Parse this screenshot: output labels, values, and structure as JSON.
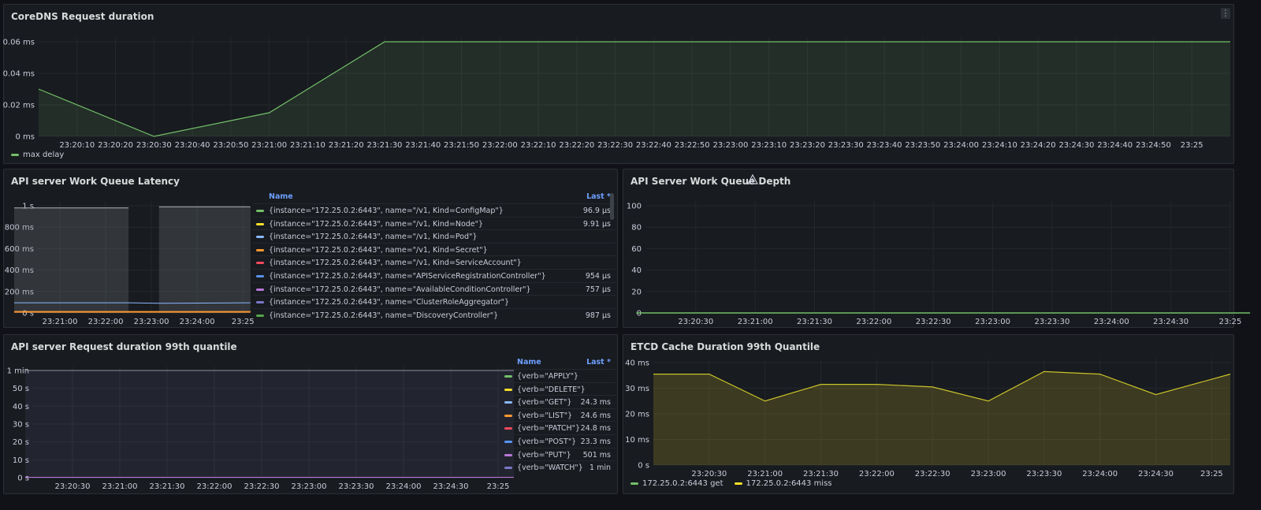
{
  "colors": {
    "green": "#73bf69",
    "yellow": "#fade2a",
    "blue": "#8ab8ff",
    "orange": "#ff9830",
    "red": "#f2495c",
    "lightblue": "#5794f2",
    "purple": "#b877d9",
    "gray_purple": "#7c78c9"
  },
  "panels": {
    "coredns": {
      "title": "CoreDNS Request duration",
      "legend": [
        {
          "name": "max delay",
          "color": "#73bf69"
        }
      ],
      "chart_data": {
        "type": "area",
        "title": "CoreDNS Request duration",
        "x": [
          "23:20:10",
          "23:20:20",
          "23:20:30",
          "23:20:40",
          "23:20:50",
          "23:21:00",
          "23:21:10",
          "23:21:20",
          "23:21:30",
          "23:21:40",
          "23:21:50",
          "23:22:00",
          "23:22:10",
          "23:22:20",
          "23:22:30",
          "23:22:40",
          "23:22:50",
          "23:23:00",
          "23:23:10",
          "23:23:20",
          "23:23:30",
          "23:23:40",
          "23:23:50",
          "23:24:00",
          "23:24:10",
          "23:24:20",
          "23:24:30",
          "23:24:40",
          "23:24:50",
          "23:25"
        ],
        "series": [
          {
            "name": "max delay",
            "points": [
              {
                "t": "23:20:00",
                "v": 0.03
              },
              {
                "t": "23:20:30",
                "v": 0.0
              },
              {
                "t": "23:21:00",
                "v": 0.015
              },
              {
                "t": "23:21:30",
                "v": 0.06
              },
              {
                "t": "23:25:10",
                "v": 0.06
              }
            ]
          }
        ],
        "yticks": [
          "0 ms",
          "0.02 ms",
          "0.04 ms",
          "0.06 ms"
        ],
        "ylim": [
          0,
          0.06
        ],
        "grid": true,
        "legend_position": "bottom-left"
      }
    },
    "wq_latency": {
      "title": "API server Work Queue Latency",
      "legend_header": {
        "name": "Name",
        "last": "Last *"
      },
      "legend_rows": [
        {
          "name": "{instance=\"172.25.0.2:6443\", name=\"/v1, Kind=ConfigMap\"}",
          "last": "96.9 µs",
          "color": "#73bf69"
        },
        {
          "name": "{instance=\"172.25.0.2:6443\", name=\"/v1, Kind=Node\"}",
          "last": "9.91 µs",
          "color": "#fade2a"
        },
        {
          "name": "{instance=\"172.25.0.2:6443\", name=\"/v1, Kind=Pod\"}",
          "last": "",
          "color": "#8ab8ff"
        },
        {
          "name": "{instance=\"172.25.0.2:6443\", name=\"/v1, Kind=Secret\"}",
          "last": "",
          "color": "#ff9830"
        },
        {
          "name": "{instance=\"172.25.0.2:6443\", name=\"/v1, Kind=ServiceAccount\"}",
          "last": "",
          "color": "#f2495c"
        },
        {
          "name": "{instance=\"172.25.0.2:6443\", name=\"APIServiceRegistrationController\"}",
          "last": "954 µs",
          "color": "#5794f2"
        },
        {
          "name": "{instance=\"172.25.0.2:6443\", name=\"AvailableConditionController\"}",
          "last": "757 µs",
          "color": "#b877d9"
        },
        {
          "name": "{instance=\"172.25.0.2:6443\", name=\"ClusterRoleAggregator\"}",
          "last": "",
          "color": "#7c78c9"
        },
        {
          "name": "{instance=\"172.25.0.2:6443\", name=\"DiscoveryController\"}",
          "last": "987 µs",
          "color": "#56a64b"
        }
      ],
      "chart_data": {
        "type": "area",
        "title": "API server Work Queue Latency",
        "x": [
          "23:21:00",
          "23:22:00",
          "23:23:00",
          "23:24:00",
          "23:25"
        ],
        "yticks": [
          "0 s",
          "200 ms",
          "400 ms",
          "600 ms",
          "800 ms",
          "1 s"
        ],
        "ylim": [
          0,
          1
        ],
        "series": [
          {
            "name": "gray band",
            "segments": [
              {
                "from": "23:20:00",
                "to": "23:22:30",
                "v": 0.98
              },
              {
                "from": "23:23:10",
                "to": "23:25:10",
                "v": 0.99
              }
            ]
          },
          {
            "name": "blue line",
            "points": [
              {
                "t": "23:20:00",
                "v": 0.095
              },
              {
                "t": "23:22:30",
                "v": 0.095
              },
              {
                "t": "23:23:10",
                "v": 0.09
              },
              {
                "t": "23:25:10",
                "v": 0.095
              }
            ]
          },
          {
            "name": "orange base",
            "points": [
              {
                "t": "23:20:00",
                "v": 0.01
              },
              {
                "t": "23:25:10",
                "v": 0.01
              }
            ]
          }
        ],
        "grid": true
      }
    },
    "wq_depth": {
      "title": "API Server Work Queue Depth",
      "chart_data": {
        "type": "line",
        "title": "API Server Work Queue Depth",
        "x": [
          "23:20:30",
          "23:21:00",
          "23:21:30",
          "23:22:00",
          "23:22:30",
          "23:23:00",
          "23:23:30",
          "23:24:00",
          "23:24:30",
          "23:25"
        ],
        "yticks": [
          "0",
          "20",
          "40",
          "60",
          "80",
          "100"
        ],
        "ylim": [
          0,
          100
        ],
        "series": [
          {
            "name": "depth",
            "points": [
              {
                "t": "23:20:00",
                "v": 0
              },
              {
                "t": "23:25:10",
                "v": 0
              }
            ]
          }
        ],
        "grid": true
      }
    },
    "req_duration": {
      "title": "API server Request duration 99th quantile",
      "legend_header": {
        "name": "Name",
        "last": "Last *"
      },
      "legend_rows": [
        {
          "name": "{verb=\"APPLY\"}",
          "last": "",
          "color": "#73bf69"
        },
        {
          "name": "{verb=\"DELETE\"}",
          "last": "",
          "color": "#fade2a"
        },
        {
          "name": "{verb=\"GET\"}",
          "last": "24.3 ms",
          "color": "#8ab8ff"
        },
        {
          "name": "{verb=\"LIST\"}",
          "last": "24.6 ms",
          "color": "#ff9830"
        },
        {
          "name": "{verb=\"PATCH\"}",
          "last": "24.8 ms",
          "color": "#f2495c"
        },
        {
          "name": "{verb=\"POST\"}",
          "last": "23.3 ms",
          "color": "#5794f2"
        },
        {
          "name": "{verb=\"PUT\"}",
          "last": "501 ms",
          "color": "#b877d9"
        },
        {
          "name": "{verb=\"WATCH\"}",
          "last": "1 min",
          "color": "#7c78c9"
        }
      ],
      "chart_data": {
        "type": "area",
        "title": "API server Request duration 99th quantile",
        "x": [
          "23:20:30",
          "23:21:00",
          "23:21:30",
          "23:22:00",
          "23:22:30",
          "23:23:00",
          "23:23:30",
          "23:24:00",
          "23:24:30",
          "23:25"
        ],
        "yticks": [
          "0 s",
          "10 s",
          "20 s",
          "30 s",
          "40 s",
          "50 s",
          "1 min"
        ],
        "ylim": [
          0,
          60
        ],
        "series": [
          {
            "name": "{verb=\"WATCH\"}",
            "points": [
              {
                "t": "23:20:00",
                "v": 60
              },
              {
                "t": "23:25:10",
                "v": 60
              }
            ]
          },
          {
            "name": "others",
            "points": [
              {
                "t": "23:20:00",
                "v": 0.2
              },
              {
                "t": "23:25:10",
                "v": 0.2
              }
            ]
          }
        ],
        "grid": true
      }
    },
    "etcd": {
      "title": "ETCD Cache Duration 99th Quantile",
      "legend": [
        {
          "name": "172.25.0.2:6443 get",
          "color": "#73bf69"
        },
        {
          "name": "172.25.0.2:6443 miss",
          "color": "#fade2a"
        }
      ],
      "chart_data": {
        "type": "area",
        "title": "ETCD Cache Duration 99th Quantile",
        "x": [
          "23:20:30",
          "23:21:00",
          "23:21:30",
          "23:22:00",
          "23:22:30",
          "23:23:00",
          "23:23:30",
          "23:24:00",
          "23:24:30",
          "23:25"
        ],
        "yticks": [
          "0 s",
          "10 ms",
          "20 ms",
          "30 ms",
          "40 ms"
        ],
        "ylim": [
          0,
          40
        ],
        "series": [
          {
            "name": "172.25.0.2:6443 miss",
            "points": [
              {
                "t": "23:20:00",
                "v": 35.5
              },
              {
                "t": "23:20:30",
                "v": 35.5
              },
              {
                "t": "23:21:00",
                "v": 25
              },
              {
                "t": "23:21:30",
                "v": 31.5
              },
              {
                "t": "23:22:00",
                "v": 31.5
              },
              {
                "t": "23:22:30",
                "v": 30.5
              },
              {
                "t": "23:23:00",
                "v": 25
              },
              {
                "t": "23:23:30",
                "v": 36.5
              },
              {
                "t": "23:24:00",
                "v": 35.5
              },
              {
                "t": "23:24:30",
                "v": 27.5
              },
              {
                "t": "23:25:10",
                "v": 35.5
              }
            ]
          }
        ],
        "grid": true,
        "legend_position": "bottom-left"
      }
    }
  }
}
